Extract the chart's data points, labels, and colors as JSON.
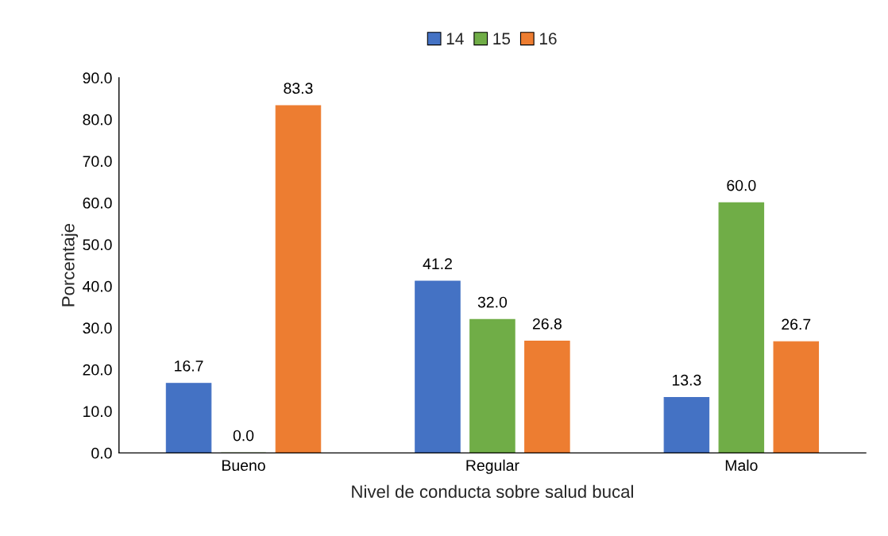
{
  "chart_data": {
    "type": "bar",
    "xlabel": "Nivel de conducta sobre salud bucal",
    "ylabel": "Porcentaje",
    "categories": [
      "Bueno",
      "Regular",
      "Malo"
    ],
    "series": [
      {
        "name": "14",
        "color": "#4472c4",
        "values": [
          16.7,
          41.2,
          13.3
        ],
        "value_labels": [
          "16.7",
          "41.2",
          "13.3"
        ]
      },
      {
        "name": "15",
        "color": "#70ad47",
        "values": [
          0.0,
          32.0,
          60.0
        ],
        "value_labels": [
          "0.0",
          "32.0",
          "60.0"
        ]
      },
      {
        "name": "16",
        "color": "#ed7d31",
        "values": [
          83.3,
          26.8,
          26.7
        ],
        "value_labels": [
          "83.3",
          "26.8",
          "26.7"
        ]
      }
    ],
    "ylim": [
      0,
      90
    ],
    "yticks": [
      {
        "value": 0,
        "label": "0.0"
      },
      {
        "value": 10,
        "label": "10.0"
      },
      {
        "value": 20,
        "label": "20.0"
      },
      {
        "value": 30,
        "label": "30.0"
      },
      {
        "value": 40,
        "label": "40.0"
      },
      {
        "value": 50,
        "label": "50.0"
      },
      {
        "value": 60,
        "label": "60.0"
      },
      {
        "value": 70,
        "label": "70.0"
      },
      {
        "value": 80,
        "label": "80.0"
      },
      {
        "value": 90,
        "label": "90.0"
      }
    ],
    "grid": false,
    "legend": "top"
  }
}
